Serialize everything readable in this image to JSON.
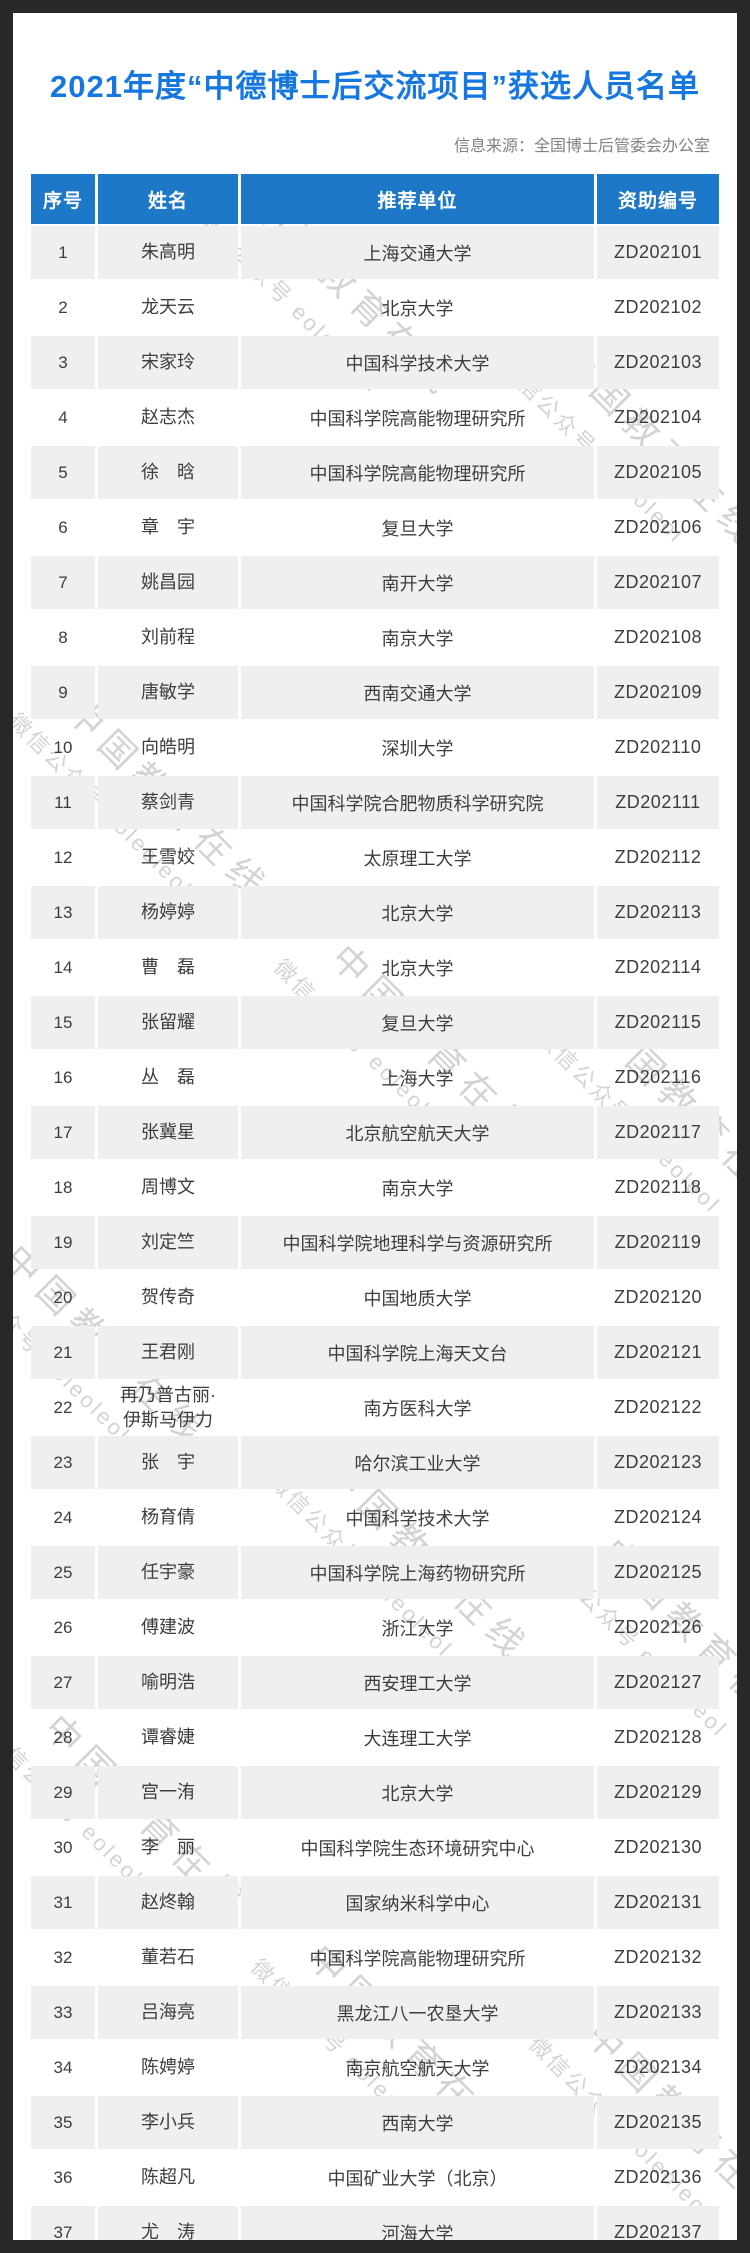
{
  "header": {
    "title": "2021年度“中德博士后交流项目”获选人员名单",
    "source": "信息来源：全国博士后管委会办公室"
  },
  "watermark": {
    "line1": "中国教育在线",
    "line2": "微信公众号 eoleoleol"
  },
  "colors": {
    "title_blue": "#1677e0",
    "table_header_blue": "#1e78c8",
    "row_alt_gray": "#efefef",
    "frame_dark": "#282828"
  },
  "table": {
    "columns": [
      "序号",
      "姓名",
      "推荐单位",
      "资助编号"
    ],
    "rows": [
      {
        "no": "1",
        "name": "朱高明",
        "org": "上海交通大学",
        "id": "ZD202101"
      },
      {
        "no": "2",
        "name": "龙天云",
        "org": "北京大学",
        "id": "ZD202102"
      },
      {
        "no": "3",
        "name": "宋家玲",
        "org": "中国科学技术大学",
        "id": "ZD202103"
      },
      {
        "no": "4",
        "name": "赵志杰",
        "org": "中国科学院高能物理研究所",
        "id": "ZD202104"
      },
      {
        "no": "5",
        "name": "徐　晗",
        "org": "中国科学院高能物理研究所",
        "id": "ZD202105"
      },
      {
        "no": "6",
        "name": "章　宇",
        "org": "复旦大学",
        "id": "ZD202106"
      },
      {
        "no": "7",
        "name": "姚昌园",
        "org": "南开大学",
        "id": "ZD202107"
      },
      {
        "no": "8",
        "name": "刘前程",
        "org": "南京大学",
        "id": "ZD202108"
      },
      {
        "no": "9",
        "name": "唐敏学",
        "org": "西南交通大学",
        "id": "ZD202109"
      },
      {
        "no": "10",
        "name": "向皓明",
        "org": "深圳大学",
        "id": "ZD202110"
      },
      {
        "no": "11",
        "name": "蔡剑青",
        "org": "中国科学院合肥物质科学研究院",
        "id": "ZD202111"
      },
      {
        "no": "12",
        "name": "王雪姣",
        "org": "太原理工大学",
        "id": "ZD202112"
      },
      {
        "no": "13",
        "name": "杨婷婷",
        "org": "北京大学",
        "id": "ZD202113"
      },
      {
        "no": "14",
        "name": "曹　磊",
        "org": "北京大学",
        "id": "ZD202114"
      },
      {
        "no": "15",
        "name": "张留耀",
        "org": "复旦大学",
        "id": "ZD202115"
      },
      {
        "no": "16",
        "name": "丛　磊",
        "org": "上海大学",
        "id": "ZD202116"
      },
      {
        "no": "17",
        "name": "张冀星",
        "org": "北京航空航天大学",
        "id": "ZD202117"
      },
      {
        "no": "18",
        "name": "周博文",
        "org": "南京大学",
        "id": "ZD202118"
      },
      {
        "no": "19",
        "name": "刘定竺",
        "org": "中国科学院地理科学与资源研究所",
        "id": "ZD202119"
      },
      {
        "no": "20",
        "name": "贺传奇",
        "org": "中国地质大学",
        "id": "ZD202120"
      },
      {
        "no": "21",
        "name": "王君刚",
        "org": "中国科学院上海天文台",
        "id": "ZD202121"
      },
      {
        "no": "22",
        "name": "再乃普古丽·\n伊斯马伊力",
        "org": "南方医科大学",
        "id": "ZD202122"
      },
      {
        "no": "23",
        "name": "张　宇",
        "org": "哈尔滨工业大学",
        "id": "ZD202123"
      },
      {
        "no": "24",
        "name": "杨育倩",
        "org": "中国科学技术大学",
        "id": "ZD202124"
      },
      {
        "no": "25",
        "name": "任宇豪",
        "org": "中国科学院上海药物研究所",
        "id": "ZD202125"
      },
      {
        "no": "26",
        "name": "傅建波",
        "org": "浙江大学",
        "id": "ZD202126"
      },
      {
        "no": "27",
        "name": "喻明浩",
        "org": "西安理工大学",
        "id": "ZD202127"
      },
      {
        "no": "28",
        "name": "谭睿婕",
        "org": "大连理工大学",
        "id": "ZD202128"
      },
      {
        "no": "29",
        "name": "宫一洧",
        "org": "北京大学",
        "id": "ZD202129"
      },
      {
        "no": "30",
        "name": "李　丽",
        "org": "中国科学院生态环境研究中心",
        "id": "ZD202130"
      },
      {
        "no": "31",
        "name": "赵炵翰",
        "org": "国家纳米科学中心",
        "id": "ZD202131"
      },
      {
        "no": "32",
        "name": "董若石",
        "org": "中国科学院高能物理研究所",
        "id": "ZD202132"
      },
      {
        "no": "33",
        "name": "吕海亮",
        "org": "黑龙江八一农垦大学",
        "id": "ZD202133"
      },
      {
        "no": "34",
        "name": "陈娉婷",
        "org": "南京航空航天大学",
        "id": "ZD202134"
      },
      {
        "no": "35",
        "name": "李小兵",
        "org": "西南大学",
        "id": "ZD202135"
      },
      {
        "no": "36",
        "name": "陈超凡",
        "org": "中国矿业大学（北京）",
        "id": "ZD202136"
      },
      {
        "no": "37",
        "name": "尤　涛",
        "org": "河海大学",
        "id": "ZD202137"
      }
    ]
  }
}
